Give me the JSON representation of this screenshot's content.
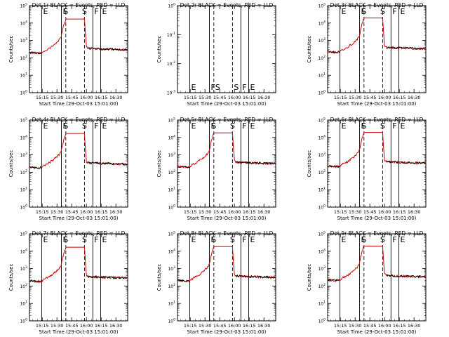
{
  "colors": {
    "events": "#000000",
    "lld": "#cc0000",
    "axis": "#000000",
    "background": "#ffffff"
  },
  "shared": {
    "ylabel": "Counts/sec",
    "xlabel": "Start Time (29-Oct-03 15:01:00)",
    "xticks": [
      {
        "t": 13,
        "label": "15:15"
      },
      {
        "t": 28,
        "label": "15:30"
      },
      {
        "t": 43,
        "label": "15:45"
      },
      {
        "t": 58,
        "label": "16:00"
      },
      {
        "t": 73,
        "label": "16:15"
      },
      {
        "t": 88,
        "label": "16:30"
      }
    ],
    "xlim_minutes_after_start": [
      0,
      100
    ],
    "ylim_log10": [
      0,
      5
    ],
    "ylim_empty_log10": [
      -3,
      0
    ],
    "yticks_log10": [
      0,
      1,
      2,
      3,
      4,
      5
    ],
    "yticks_empty_log10": [
      -3,
      -2,
      -1,
      0
    ],
    "markers": [
      {
        "t": 12.5,
        "letter": "E",
        "style": "solid"
      },
      {
        "t": 32.5,
        "letter": "F",
        "style": "solid"
      },
      {
        "t": 37,
        "letter": "S",
        "style": "dashed"
      },
      {
        "t": 56,
        "letter": "S",
        "style": "dashed"
      },
      {
        "t": 64.5,
        "letter": "F",
        "style": "solid"
      },
      {
        "t": 72.5,
        "letter": "E",
        "style": "solid"
      }
    ]
  },
  "panels": [
    {
      "title": "Det 1r BLACK = Events, RED = LLD",
      "ylabel": "Counts/sec",
      "xlabel": "Start Time (29-Oct-03 15:01:00)",
      "empty": false
    },
    {
      "title": "Det 2r BLACK = Events, RED = LLD",
      "ylabel": "Counts/sec",
      "xlabel": "Start Time (29-Oct-03 15:01:00)",
      "empty": true
    },
    {
      "title": "Det 3r BLACK = Events, RED = LLD",
      "ylabel": "Counts/sec",
      "xlabel": "Start Time (29-Oct-03 15:01:00)",
      "empty": false
    },
    {
      "title": "Det 4r BLACK = Events, RED = LLD",
      "ylabel": "Counts/sec",
      "xlabel": "Start Time (29-Oct-03 15:01:00)",
      "empty": false
    },
    {
      "title": "Det 5r BLACK = Events, RED = LLD",
      "ylabel": "Counts/sec",
      "xlabel": "Start Time (29-Oct-03 15:01:00)",
      "empty": false
    },
    {
      "title": "Det 6r BLACK = Events, RED = LLD",
      "ylabel": "Counts/sec",
      "xlabel": "Start Time (29-Oct-03 15:01:00)",
      "empty": false
    },
    {
      "title": "Det 7r BLACK = Events, RED = LLD",
      "ylabel": "Counts/sec",
      "xlabel": "Start Time (29-Oct-03 15:01:00)",
      "empty": false
    },
    {
      "title": "Det 8r BLACK = Events, RED = LLD",
      "ylabel": "Counts/sec",
      "xlabel": "Start Time (29-Oct-03 15:01:00)",
      "empty": false
    },
    {
      "title": "Det 9r BLACK = Events, RED = LLD",
      "ylabel": "Counts/sec",
      "xlabel": "Start Time (29-Oct-03 15:01:00)",
      "empty": false
    }
  ],
  "chart_data": {
    "type": "line",
    "xlabel": "Start Time (29-Oct-03 15:01:00)",
    "ylabel": "Counts/sec",
    "y_scale": "log",
    "ylim": [
      1,
      100000
    ],
    "x_units": "minutes after 15:01:00",
    "x": [
      0,
      5,
      10,
      12,
      15,
      18,
      21,
      24,
      27,
      30,
      32,
      33,
      35,
      37,
      40,
      44,
      48,
      52,
      55,
      56,
      57,
      58,
      59,
      60,
      65,
      70,
      75,
      80,
      85,
      90,
      95,
      100
    ],
    "series": [
      {
        "name": "LLD",
        "color": "#cc0000",
        "values": [
          200,
          190,
          180,
          190,
          250,
          300,
          380,
          500,
          700,
          1000,
          1400,
          2500,
          8000,
          17000,
          17000,
          17000,
          17000,
          17000,
          17000,
          17000,
          2000,
          420,
          380,
          350,
          340,
          330,
          320,
          320,
          310,
          300,
          300,
          290
        ]
      },
      {
        "name": "Events",
        "color": "#000000",
        "values": [
          200,
          190,
          180,
          190,
          null,
          null,
          null,
          null,
          null,
          null,
          null,
          null,
          null,
          null,
          null,
          null,
          null,
          null,
          null,
          null,
          null,
          null,
          380,
          350,
          340,
          330,
          320,
          320,
          310,
          300,
          300,
          290
        ]
      }
    ]
  }
}
